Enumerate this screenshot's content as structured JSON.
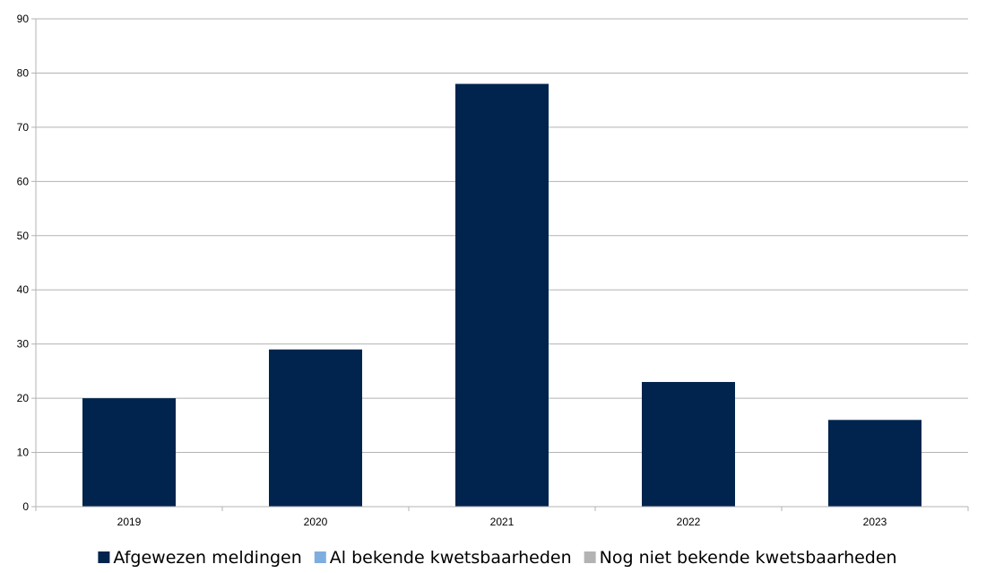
{
  "chart_data": {
    "type": "bar",
    "categories": [
      "2019",
      "2020",
      "2021",
      "2022",
      "2023"
    ],
    "series": [
      {
        "name": "Afgewezen meldingen",
        "values": [
          20,
          29,
          78,
          23,
          16
        ],
        "color": "#00244d"
      },
      {
        "name": "Al bekende kwetsbaarheden",
        "values": [
          0,
          0,
          0,
          0,
          0
        ],
        "color": "#7eaee0"
      },
      {
        "name": "Nog niet bekende kwetsbaarheden",
        "values": [
          0,
          0,
          0,
          0,
          0
        ],
        "color": "#b3b3b3"
      }
    ],
    "title": "",
    "xlabel": "",
    "ylabel": "",
    "ylim": [
      0,
      90
    ],
    "yticks": [
      "0",
      "10",
      "20",
      "30",
      "40",
      "50",
      "60",
      "70",
      "80",
      "90"
    ],
    "grid": true,
    "legend": "bottom",
    "colors": {
      "gridline": "#b3b3b3",
      "axis": "#b3b3b3"
    }
  }
}
